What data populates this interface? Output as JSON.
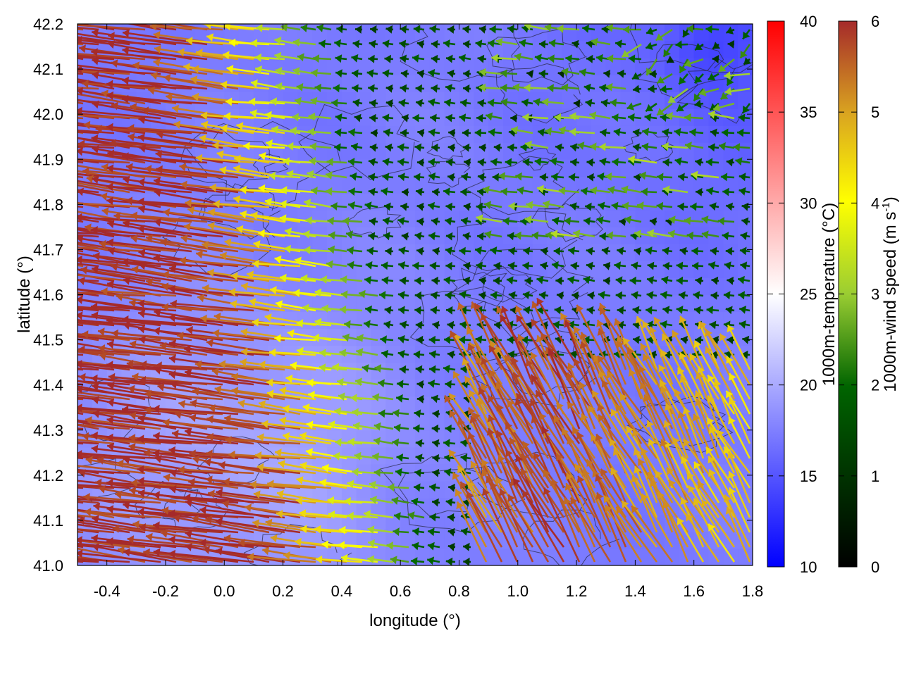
{
  "chart_data": {
    "type": "heatmap",
    "title": "",
    "xlabel": "longitude (°)",
    "ylabel": "latitude (°)",
    "xlim": [
      -0.5,
      1.8
    ],
    "ylim": [
      41.0,
      42.2
    ],
    "x_ticks": [
      "-0.4",
      "-0.2",
      "0.0",
      "0.2",
      "0.4",
      "0.6",
      "0.8",
      "1.0",
      "1.2",
      "1.4",
      "1.6",
      "1.8"
    ],
    "y_ticks": [
      "41.0",
      "41.1",
      "41.2",
      "41.3",
      "41.4",
      "41.5",
      "41.6",
      "41.7",
      "41.8",
      "41.9",
      "42.0",
      "42.1",
      "42.2"
    ],
    "temperature_colorbar": {
      "label": "1000m-temperature (°C)",
      "range": [
        10,
        40
      ],
      "ticks": [
        "10",
        "15",
        "20",
        "25",
        "30",
        "35",
        "40"
      ],
      "colors": [
        "#0000ff",
        "#ffffff",
        "#ff0000"
      ]
    },
    "wind_colorbar": {
      "label_main": "1000m-wind speed (m s",
      "label_sup": "-1",
      "label_end": ")",
      "range": [
        0,
        6
      ],
      "ticks": [
        "0",
        "1",
        "2",
        "3",
        "4",
        "5",
        "6"
      ],
      "colors": [
        "#000000",
        "#006400",
        "#9acd32",
        "#ffff00",
        "#daa520",
        "#a52a2a"
      ]
    },
    "temperature_field_range": [
      15,
      22
    ],
    "wind_speed_field_range": [
      0.5,
      6
    ]
  }
}
